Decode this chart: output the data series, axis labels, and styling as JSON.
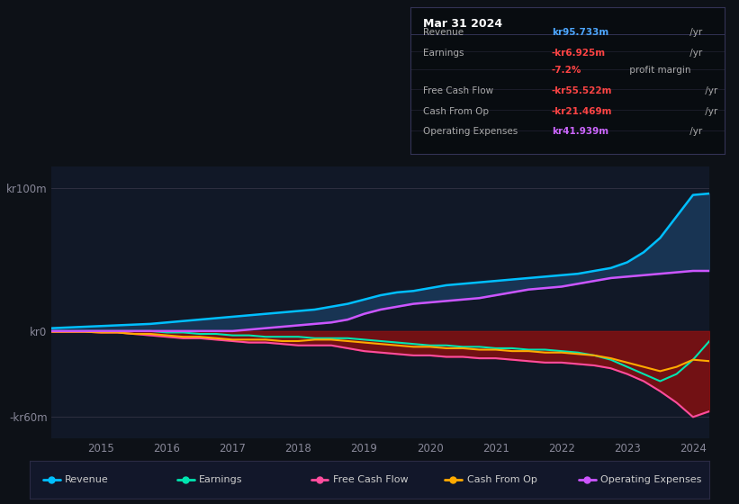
{
  "bg_color": "#0d1117",
  "plot_bg_color": "#111827",
  "ylim": [
    -75,
    115
  ],
  "yticks": [
    -60,
    0,
    100
  ],
  "ytick_labels": [
    "-kr60m",
    "kr0",
    "kr100m"
  ],
  "years_x": [
    2014.25,
    2014.5,
    2014.75,
    2015.0,
    2015.25,
    2015.5,
    2015.75,
    2016.0,
    2016.25,
    2016.5,
    2016.75,
    2017.0,
    2017.25,
    2017.5,
    2017.75,
    2018.0,
    2018.25,
    2018.5,
    2018.75,
    2019.0,
    2019.25,
    2019.5,
    2019.75,
    2020.0,
    2020.25,
    2020.5,
    2020.75,
    2021.0,
    2021.25,
    2021.5,
    2021.75,
    2022.0,
    2022.25,
    2022.5,
    2022.75,
    2023.0,
    2023.25,
    2023.5,
    2023.75,
    2024.0,
    2024.25
  ],
  "revenue": [
    2,
    2.5,
    3,
    3.5,
    4,
    4.5,
    5,
    6,
    7,
    8,
    9,
    10,
    11,
    12,
    13,
    14,
    15,
    17,
    19,
    22,
    25,
    27,
    28,
    30,
    32,
    33,
    34,
    35,
    36,
    37,
    38,
    39,
    40,
    42,
    44,
    48,
    55,
    65,
    80,
    95,
    96
  ],
  "earnings": [
    0,
    0,
    0,
    0,
    0,
    0,
    0,
    -1,
    -1,
    -2,
    -2,
    -3,
    -3,
    -4,
    -4,
    -4,
    -5,
    -5,
    -5,
    -6,
    -7,
    -8,
    -9,
    -10,
    -10,
    -11,
    -11,
    -12,
    -12,
    -13,
    -13,
    -14,
    -15,
    -17,
    -20,
    -25,
    -30,
    -35,
    -30,
    -20,
    -7
  ],
  "free_cash_flow": [
    -0.5,
    -0.5,
    -0.5,
    -1,
    -1,
    -2,
    -3,
    -4,
    -5,
    -5,
    -6,
    -7,
    -8,
    -8,
    -9,
    -10,
    -10,
    -10,
    -12,
    -14,
    -15,
    -16,
    -17,
    -17,
    -18,
    -18,
    -19,
    -19,
    -20,
    -21,
    -22,
    -22,
    -23,
    -24,
    -26,
    -30,
    -35,
    -42,
    -50,
    -60,
    -56
  ],
  "cash_from_op": [
    -0.5,
    -0.5,
    -0.5,
    -1,
    -1,
    -2,
    -2,
    -3,
    -4,
    -4,
    -5,
    -6,
    -6,
    -6,
    -7,
    -7,
    -6,
    -6,
    -7,
    -8,
    -9,
    -10,
    -11,
    -11,
    -12,
    -12,
    -13,
    -13,
    -14,
    -14,
    -15,
    -15,
    -16,
    -17,
    -19,
    -22,
    -25,
    -28,
    -25,
    -20,
    -21
  ],
  "op_expenses": [
    0,
    0,
    0,
    0,
    0,
    0,
    0,
    0,
    0,
    0,
    0,
    0,
    1,
    2,
    3,
    4,
    5,
    6,
    8,
    12,
    15,
    17,
    19,
    20,
    21,
    22,
    23,
    25,
    27,
    29,
    30,
    31,
    33,
    35,
    37,
    38,
    39,
    40,
    41,
    42,
    42
  ],
  "revenue_color": "#00bfff",
  "earnings_color": "#00e5b0",
  "free_cash_flow_color": "#ff4d9e",
  "cash_from_op_color": "#ffaa00",
  "op_expenses_color": "#cc55ff",
  "fill_blue_color": "#1a3a5c",
  "fill_red_color": "#8b1010",
  "title": "Mar 31 2024",
  "info_rows": [
    {
      "label": "Revenue",
      "value": "kr95.733m",
      "suffix": " /yr",
      "value_color": "#4da6ff"
    },
    {
      "label": "Earnings",
      "value": "-kr6.925m",
      "suffix": " /yr",
      "value_color": "#ff4444"
    },
    {
      "label": "",
      "value": "-7.2%",
      "suffix": " profit margin",
      "value_color": "#ff4444"
    },
    {
      "label": "Free Cash Flow",
      "value": "-kr55.522m",
      "suffix": " /yr",
      "value_color": "#ff4444"
    },
    {
      "label": "Cash From Op",
      "value": "-kr21.469m",
      "suffix": " /yr",
      "value_color": "#ff4444"
    },
    {
      "label": "Operating Expenses",
      "value": "kr41.939m",
      "suffix": " /yr",
      "value_color": "#cc66ff"
    }
  ],
  "legend_items": [
    {
      "label": "Revenue",
      "color": "#00bfff"
    },
    {
      "label": "Earnings",
      "color": "#00e5b0"
    },
    {
      "label": "Free Cash Flow",
      "color": "#ff4d9e"
    },
    {
      "label": "Cash From Op",
      "color": "#ffaa00"
    },
    {
      "label": "Operating Expenses",
      "color": "#cc55ff"
    }
  ]
}
